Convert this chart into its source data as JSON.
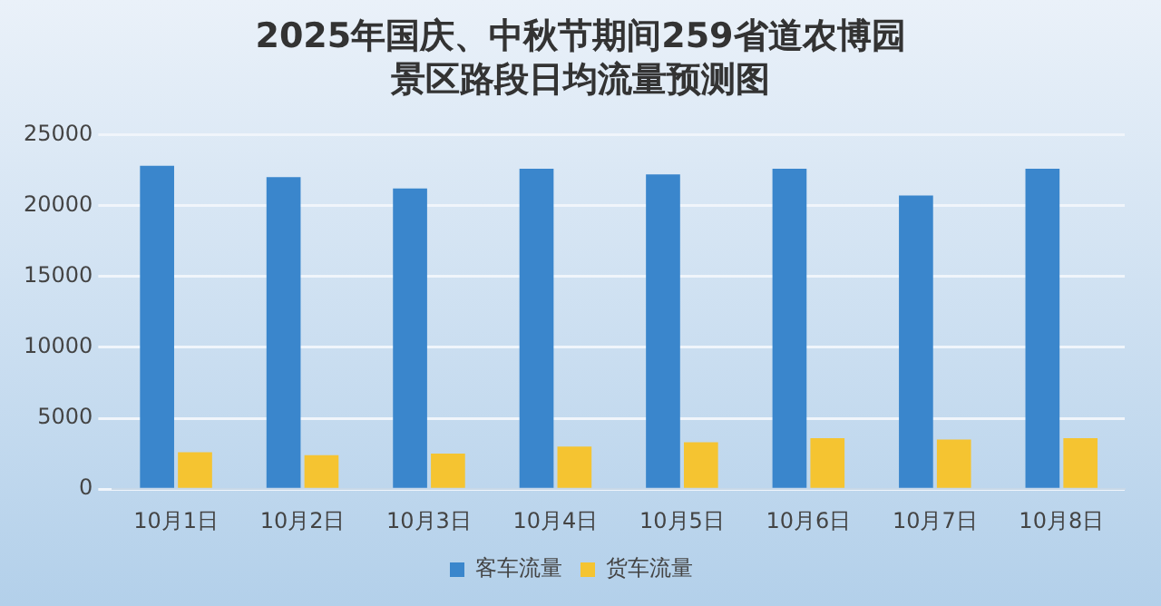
{
  "chart_data": {
    "type": "bar",
    "title": "2025年国庆、中秋节期间259省道农博园景区路段日均流量预测图",
    "categories": [
      "10月1日",
      "10月2日",
      "10月3日",
      "10月4日",
      "10月5日",
      "10月6日",
      "10月7日",
      "10月8日"
    ],
    "series": [
      {
        "name": "客车流量",
        "color": "#3a86cc",
        "values": [
          22800,
          22000,
          21200,
          22600,
          22200,
          22600,
          20700,
          22600
        ]
      },
      {
        "name": "货车流量",
        "color": "#f5c431",
        "values": [
          2600,
          2400,
          2500,
          3000,
          3300,
          3600,
          3500,
          3600
        ]
      }
    ],
    "ylim": [
      0,
      25000
    ],
    "yticks": [
      0,
      5000,
      10000,
      15000,
      20000,
      25000
    ],
    "grid": "y",
    "legend": "bottom"
  }
}
